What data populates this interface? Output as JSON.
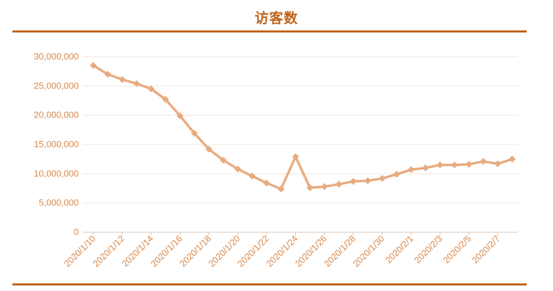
{
  "chart_data": {
    "type": "line",
    "title": "访客数",
    "xlabel": "",
    "ylabel": "",
    "ylim": [
      0,
      30000000
    ],
    "yticks": [
      "0",
      "5,000,000",
      "10,000,000",
      "15,000,000",
      "20,000,000",
      "25,000,000",
      "30,000,000"
    ],
    "grid": true,
    "legend": "none",
    "xtick_labels": [
      "2020/1/10",
      "2020/1/12",
      "2020/1/14",
      "2020/1/16",
      "2020/1/18",
      "2020/1/20",
      "2020/1/22",
      "2020/1/24",
      "2020/1/26",
      "2020/1/28",
      "2020/1/30",
      "2020/2/1",
      "2020/2/3",
      "2020/2/5",
      "2020/2/7"
    ],
    "x": [
      "2020/1/10",
      "2020/1/11",
      "2020/1/12",
      "2020/1/13",
      "2020/1/14",
      "2020/1/15",
      "2020/1/16",
      "2020/1/17",
      "2020/1/18",
      "2020/1/19",
      "2020/1/20",
      "2020/1/21",
      "2020/1/22",
      "2020/1/23",
      "2020/1/24",
      "2020/1/25",
      "2020/1/26",
      "2020/1/27",
      "2020/1/28",
      "2020/1/29",
      "2020/1/30",
      "2020/1/31",
      "2020/2/1",
      "2020/2/2",
      "2020/2/3",
      "2020/2/4",
      "2020/2/5",
      "2020/2/6",
      "2020/2/7",
      "2020/2/8"
    ],
    "series": [
      {
        "values": [
          28500000,
          27000000,
          26100000,
          25400000,
          24500000,
          22700000,
          19900000,
          16900000,
          14200000,
          12300000,
          10800000,
          9600000,
          8400000,
          7400000,
          12900000,
          7600000,
          7800000,
          8200000,
          8700000,
          8800000,
          9200000,
          9900000,
          10700000,
          11000000,
          11500000,
          11500000,
          11600000,
          12100000,
          11700000,
          12500000
        ]
      }
    ],
    "colors": {
      "line": "#e8ab80",
      "marker": "#e8ab80",
      "axis_text": "#d8884a",
      "title": "#c0631b",
      "rule": "#c0631b",
      "grid": "#f0e6de"
    }
  }
}
